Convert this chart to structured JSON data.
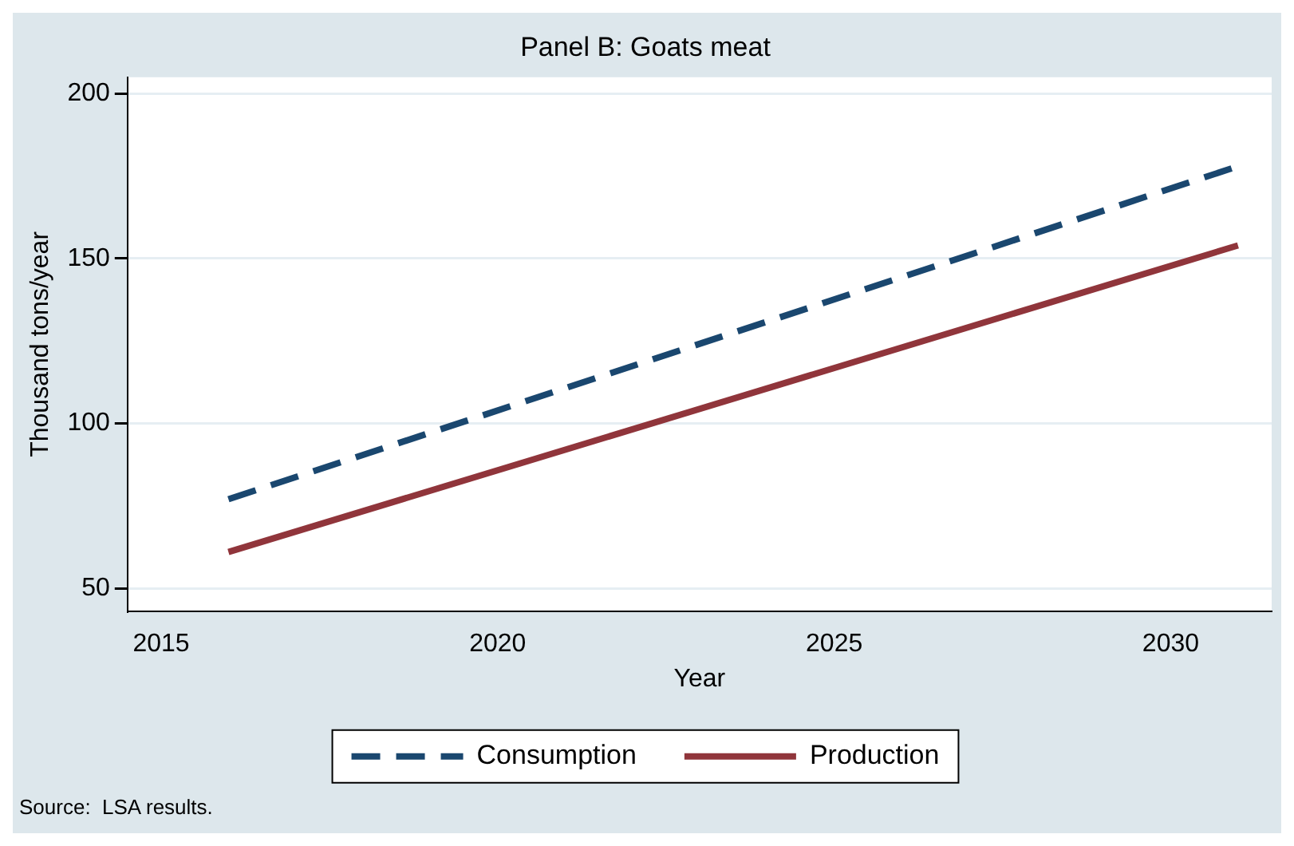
{
  "chart_data": {
    "type": "line",
    "title": "Panel B: Goats meat",
    "xlabel": "Year",
    "ylabel": "Thousand tons/year",
    "annotations": [
      "Source:  LSA results."
    ],
    "x": [
      2016,
      2031
    ],
    "series": [
      {
        "name": "Consumption",
        "color": "#1a476f",
        "values": [
          77,
          178
        ],
        "line_style": "dashed"
      },
      {
        "name": "Production",
        "color": "#90353b",
        "values": [
          61,
          154
        ],
        "line_style": "solid"
      }
    ],
    "xlim": [
      2014.5,
      2031.5
    ],
    "xticks": [
      2015,
      2020,
      2025,
      2030
    ],
    "ylim": [
      43,
      205
    ],
    "yticks": [
      50,
      100,
      150,
      200
    ],
    "grid": "y",
    "legend": "bottom",
    "marker": "none"
  }
}
